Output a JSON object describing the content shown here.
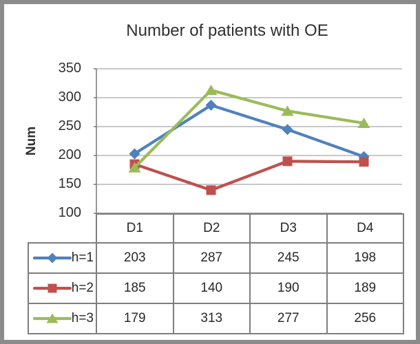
{
  "chart_data": {
    "type": "line",
    "title": "Number of patients with OE",
    "xlabel": "",
    "ylabel": "Num",
    "categories": [
      "D1",
      "D2",
      "D3",
      "D4"
    ],
    "series": [
      {
        "name": "h=1",
        "marker": "diamond",
        "color": "#4F81BD",
        "values": [
          203,
          287,
          245,
          198
        ]
      },
      {
        "name": "h=2",
        "marker": "square",
        "color": "#C0504D",
        "values": [
          185,
          140,
          190,
          189
        ]
      },
      {
        "name": "h=3",
        "marker": "triangle",
        "color": "#9BBB59",
        "values": [
          179,
          313,
          277,
          256
        ]
      }
    ],
    "ylim": [
      100,
      350
    ],
    "yticks": [
      100,
      150,
      200,
      250,
      300,
      350
    ],
    "grid": true,
    "legend_position": "data-table-left",
    "data_table": true
  },
  "colors": {
    "background": "#FFFFFF",
    "frame": "#8B8B8B",
    "gridline": "#A8A8A8",
    "axis": "#7E7E7E",
    "table_border": "#7E7E7E",
    "text": "#303030"
  }
}
